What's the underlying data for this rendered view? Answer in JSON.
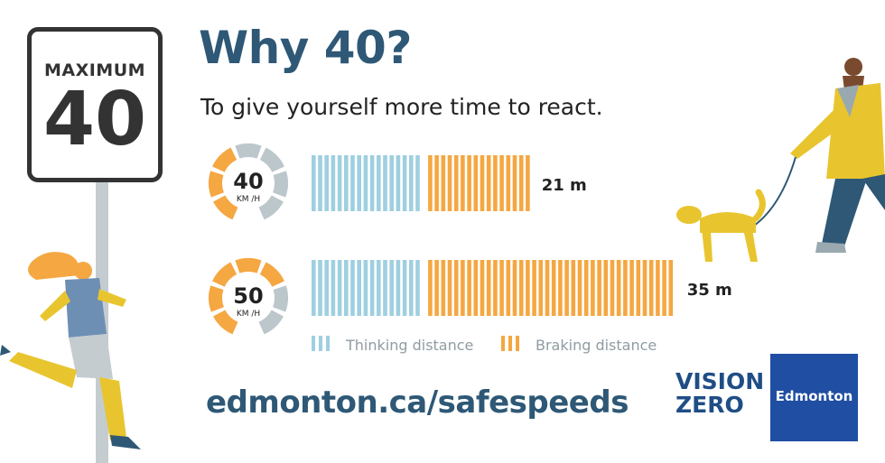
{
  "sign": {
    "label": "MAXIMUM",
    "value": "40"
  },
  "header": {
    "title": "Why 40?",
    "subtitle": "To give yourself more time to react."
  },
  "chart_data": {
    "type": "bar",
    "orientation": "horizontal",
    "stacked": true,
    "categories": [
      "40 KM/H",
      "50 KM/H"
    ],
    "series": [
      {
        "name": "Thinking distance",
        "values": [
          11,
          11
        ],
        "color": "#9fcfe0"
      },
      {
        "name": "Braking distance",
        "values": [
          10,
          24
        ],
        "color": "#f5a742"
      }
    ],
    "totals_labels": [
      "21 m",
      "35 m"
    ],
    "gauges": [
      {
        "speed": "40",
        "unit": "KM /H",
        "level": 0.4
      },
      {
        "speed": "50",
        "unit": "KM /H",
        "level": 0.5
      }
    ],
    "legend_position": "bottom"
  },
  "footer": {
    "url": "edmonton.ca/safespeeds"
  },
  "branding": {
    "vision": "VISION",
    "zero": "ZERO",
    "city": "Edmonton"
  },
  "colors": {
    "navy": "#2e5876",
    "thinking": "#9fcfe0",
    "braking": "#f5a742",
    "gauge_grey": "#bcc7cc",
    "brand_blue": "#1f4ea3"
  }
}
